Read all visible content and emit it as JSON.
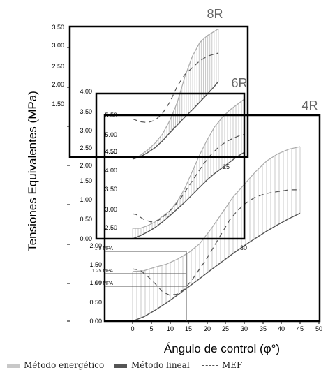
{
  "chart_data": {
    "type": "line",
    "xlabel": "Ángulo de control (φ°)",
    "ylabel": "Tensiones Equivalentes (MPa)",
    "x_ticks": [
      "0",
      "5",
      "10",
      "15",
      "20",
      "25",
      "30",
      "35",
      "40",
      "45",
      "50"
    ],
    "y_ticks_main": [
      "0.00",
      "0.50",
      "1.00",
      "1.50",
      "2.00",
      "2.50",
      "3.00",
      "3.50"
    ],
    "inner_ticks_6R": [
      "0.00",
      "0.50",
      "1.00",
      "1.50",
      "2.00",
      "2.50",
      "3.00",
      "3.50",
      "4.00"
    ],
    "inner_ticks_4R": [
      "0.00",
      "0.50",
      "1.00",
      "1.50",
      "2.00"
    ],
    "inner_ticks_8R_axis": [
      "4.50",
      "5.00",
      "5.50"
    ],
    "inner_ticks_6R_axis": [
      "2.50",
      "3.00",
      "3.50",
      "4.00",
      "4.50"
    ],
    "case_labels": [
      "8R",
      "6R",
      "4R"
    ],
    "curve_labels": [
      "25",
      "30"
    ],
    "colors": {
      "energetic": "#c8c8c8",
      "linear": "#555555",
      "mef": "#555555",
      "frame": "#000000"
    },
    "reference_lines": [
      {
        "label": "1.9 MPA",
        "value": 1.9
      },
      {
        "label": "1.25 MPA",
        "value": 1.25
      },
      {
        "label": "0.9 MPA",
        "value": 0.9
      }
    ],
    "reference_x": 15,
    "panels": [
      {
        "name": "8R",
        "x_range": [
          0,
          23
        ],
        "y_range": [
          4.3,
          7.2
        ],
        "series": [
          {
            "name": "Método energético",
            "style": "hatched",
            "x": [
              0,
              2,
              4,
              6,
              8,
              10,
              12,
              14,
              16,
              18,
              20,
              22,
              23
            ],
            "y": [
              4.3,
              4.38,
              4.5,
              4.65,
              4.85,
              5.15,
              5.55,
              6.1,
              6.55,
              6.85,
              7.0,
              7.1,
              7.15
            ]
          },
          {
            "name": "Método lineal",
            "style": "solid",
            "x": [
              0,
              2,
              4,
              6,
              8,
              10,
              12,
              14,
              16,
              18,
              20,
              22,
              23
            ],
            "y": [
              4.3,
              4.35,
              4.44,
              4.55,
              4.7,
              4.88,
              5.05,
              5.22,
              5.38,
              5.55,
              5.72,
              5.9,
              6.0
            ]
          },
          {
            "name": "MEF",
            "style": "dashed",
            "x": [
              0,
              2,
              4,
              6,
              8,
              10,
              12,
              14,
              16,
              18,
              20,
              22,
              23
            ],
            "y": [
              5.18,
              5.12,
              5.1,
              5.15,
              5.3,
              5.55,
              5.9,
              6.15,
              6.3,
              6.45,
              6.55,
              6.6,
              6.62
            ]
          }
        ]
      },
      {
        "name": "6R",
        "x_range": [
          0,
          30
        ],
        "y_range": [
          2.3,
          6.2
        ],
        "series": [
          {
            "name": "Método energético",
            "style": "hatched",
            "x": [
              0,
              2,
              4,
              6,
              8,
              10,
              12,
              14,
              16,
              18,
              20,
              22,
              24,
              26,
              28,
              30
            ],
            "y": [
              2.58,
              2.58,
              2.65,
              2.75,
              2.9,
              3.05,
              3.3,
              3.65,
              4.1,
              4.55,
              4.95,
              5.3,
              5.55,
              5.75,
              5.9,
              6.05
            ]
          },
          {
            "name": "Método lineal",
            "style": "solid",
            "x": [
              0,
              2,
              4,
              6,
              8,
              10,
              12,
              14,
              16,
              18,
              20,
              22,
              24,
              26,
              28,
              30
            ],
            "y": [
              2.3,
              2.38,
              2.48,
              2.6,
              2.75,
              2.92,
              3.1,
              3.28,
              3.48,
              3.68,
              3.88,
              4.05,
              4.2,
              4.35,
              4.5,
              4.62
            ]
          },
          {
            "name": "MEF",
            "style": "dashed",
            "x": [
              0,
              1,
              3,
              5,
              7,
              9,
              11,
              13,
              15,
              17,
              19,
              21,
              23,
              25,
              27,
              29,
              30
            ],
            "y": [
              2.97,
              2.95,
              2.82,
              2.75,
              2.8,
              2.95,
              3.15,
              3.4,
              3.7,
              4.0,
              4.3,
              4.55,
              4.75,
              4.9,
              5.0,
              5.08,
              5.1
            ]
          }
        ]
      },
      {
        "name": "4R",
        "x_range": [
          0,
          45
        ],
        "y_range": [
          0,
          5.2
        ],
        "series": [
          {
            "name": "Método energético",
            "style": "hatched",
            "x": [
              0,
              3,
              6,
              9,
              12,
              15,
              18,
              21,
              24,
              27,
              30,
              33,
              36,
              39,
              42,
              45
            ],
            "y": [
              1.38,
              1.4,
              1.5,
              1.58,
              1.72,
              1.9,
              2.15,
              2.55,
              3.0,
              3.45,
              3.8,
              4.15,
              4.45,
              4.65,
              4.78,
              4.85
            ]
          },
          {
            "name": "Método lineal",
            "style": "solid",
            "x": [
              0,
              3,
              6,
              9,
              12,
              15,
              18,
              21,
              24,
              27,
              30,
              33,
              36,
              39,
              42,
              45
            ],
            "y": [
              0.0,
              0.12,
              0.3,
              0.5,
              0.72,
              0.95,
              1.18,
              1.42,
              1.65,
              1.88,
              2.1,
              2.3,
              2.5,
              2.68,
              2.85,
              3.0
            ]
          },
          {
            "name": "MEF",
            "style": "dashed",
            "x": [
              0,
              2,
              4,
              6,
              8,
              10,
              12,
              14,
              16,
              18,
              20,
              22,
              24,
              26,
              28,
              30,
              33,
              36,
              39,
              42,
              45
            ],
            "y": [
              1.45,
              1.42,
              1.25,
              1.05,
              0.82,
              0.72,
              0.75,
              0.9,
              1.15,
              1.45,
              1.75,
              2.1,
              2.45,
              2.8,
              3.05,
              3.25,
              3.45,
              3.55,
              3.6,
              3.65,
              3.65
            ]
          }
        ]
      }
    ],
    "legend": [
      {
        "label": "Método energético",
        "style": "light-bar"
      },
      {
        "label": "Método lineal",
        "style": "dark-bar"
      },
      {
        "label": "MEF",
        "style": "dashed"
      }
    ]
  }
}
